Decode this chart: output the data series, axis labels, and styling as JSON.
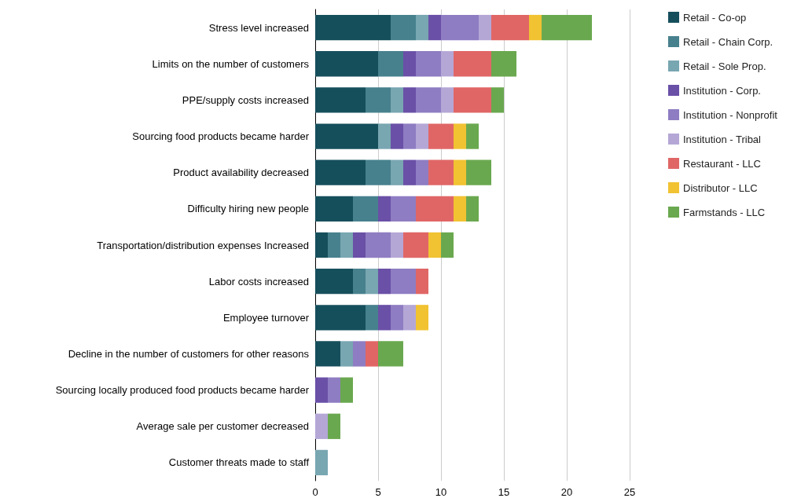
{
  "chart_data": {
    "type": "bar",
    "orientation": "horizontal",
    "stacked": true,
    "categories": [
      "Stress level increased",
      "Limits on the number of customers",
      "PPE/supply costs increased",
      "Sourcing food products became harder",
      "Product availability decreased",
      "Difficulty hiring new people",
      "Transportation/distribution expenses Increased",
      "Labor costs increased",
      "Employee turnover",
      "Decline in the number of customers for other reasons",
      "Sourcing locally produced food products became harder",
      "Average sale per customer decreased",
      "Customer threats made to staff"
    ],
    "series": [
      {
        "name": "Retail - Co-op",
        "color": "#164f5c",
        "values": [
          6,
          5,
          4,
          5,
          4,
          3,
          1,
          3,
          4,
          2,
          0,
          0,
          0
        ]
      },
      {
        "name": "Retail - Chain Corp.",
        "color": "#47818d",
        "values": [
          2,
          2,
          2,
          0,
          2,
          2,
          1,
          1,
          1,
          0,
          0,
          0,
          0
        ]
      },
      {
        "name": "Retail - Sole Prop.",
        "color": "#78a6b1",
        "values": [
          1,
          0,
          1,
          1,
          1,
          0,
          1,
          1,
          0,
          1,
          0,
          0,
          1
        ]
      },
      {
        "name": "Institution - Corp.",
        "color": "#6a50a7",
        "values": [
          1,
          1,
          1,
          1,
          1,
          1,
          1,
          1,
          1,
          0,
          1,
          0,
          0
        ]
      },
      {
        "name": "Institution - Nonprofit",
        "color": "#8e7dc2",
        "values": [
          3,
          2,
          2,
          1,
          1,
          2,
          2,
          2,
          1,
          1,
          1,
          0,
          0
        ]
      },
      {
        "name": "Institution - Tribal",
        "color": "#b4a7d6",
        "values": [
          1,
          1,
          1,
          1,
          0,
          0,
          1,
          0,
          1,
          0,
          0,
          1,
          0
        ]
      },
      {
        "name": "Restaurant - LLC",
        "color": "#e06666",
        "values": [
          3,
          3,
          3,
          2,
          2,
          3,
          2,
          1,
          0,
          1,
          0,
          0,
          0
        ]
      },
      {
        "name": "Distributor - LLC",
        "color": "#f1c232",
        "values": [
          1,
          0,
          0,
          1,
          1,
          1,
          1,
          0,
          1,
          0,
          0,
          0,
          0
        ]
      },
      {
        "name": "Farmstands - LLC",
        "color": "#6aa84f",
        "values": [
          4,
          2,
          1,
          1,
          2,
          1,
          1,
          0,
          0,
          2,
          1,
          1,
          0
        ]
      }
    ],
    "xlim": [
      0,
      25
    ],
    "xticks": [
      0,
      5,
      10,
      15,
      20,
      25
    ],
    "grid": "x",
    "legend": "right"
  }
}
